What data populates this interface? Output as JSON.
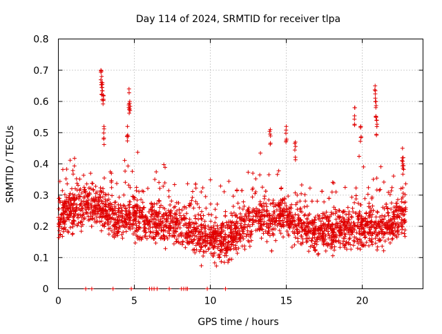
{
  "chart_data": {
    "type": "scatter",
    "title": "Day 114 of 2024, SRMTID for receiver tlpa",
    "xlabel": "GPS time / hours",
    "ylabel": "SRMTID / TECUs",
    "xlim": [
      0,
      24
    ],
    "ylim": [
      0,
      0.8
    ],
    "xticks": [
      0,
      5,
      10,
      15,
      20
    ],
    "xtick_labels": [
      "0",
      "5",
      "10",
      "15",
      "20"
    ],
    "yticks": [
      0,
      0.1,
      0.2,
      0.3,
      0.4,
      0.5,
      0.6,
      0.7,
      0.8
    ],
    "ytick_labels": [
      "0",
      "0.1",
      "0.2",
      "0.3",
      "0.4",
      "0.5",
      "0.6",
      "0.7",
      "0.8"
    ],
    "grid": true,
    "marker": "plus",
    "marker_color": "#e00000",
    "data_extent_hours": [
      0,
      22.9
    ],
    "trend": [
      {
        "x": 0.0,
        "y": 0.23
      },
      {
        "x": 1.0,
        "y": 0.26
      },
      {
        "x": 2.0,
        "y": 0.27
      },
      {
        "x": 3.0,
        "y": 0.25
      },
      {
        "x": 4.0,
        "y": 0.22
      },
      {
        "x": 5.0,
        "y": 0.23
      },
      {
        "x": 6.0,
        "y": 0.22
      },
      {
        "x": 7.0,
        "y": 0.21
      },
      {
        "x": 8.0,
        "y": 0.2
      },
      {
        "x": 9.0,
        "y": 0.19
      },
      {
        "x": 10.0,
        "y": 0.16
      },
      {
        "x": 11.0,
        "y": 0.15
      },
      {
        "x": 12.0,
        "y": 0.2
      },
      {
        "x": 13.0,
        "y": 0.23
      },
      {
        "x": 14.0,
        "y": 0.22
      },
      {
        "x": 15.0,
        "y": 0.24
      },
      {
        "x": 16.0,
        "y": 0.2
      },
      {
        "x": 17.0,
        "y": 0.18
      },
      {
        "x": 18.0,
        "y": 0.19
      },
      {
        "x": 19.0,
        "y": 0.19
      },
      {
        "x": 20.0,
        "y": 0.2
      },
      {
        "x": 21.0,
        "y": 0.19
      },
      {
        "x": 22.0,
        "y": 0.21
      },
      {
        "x": 22.9,
        "y": 0.25
      }
    ],
    "highlights": [
      {
        "x": 2.8,
        "y": 0.7
      },
      {
        "x": 2.85,
        "y": 0.68
      },
      {
        "x": 2.9,
        "y": 0.66
      },
      {
        "x": 2.95,
        "y": 0.62
      },
      {
        "x": 3.0,
        "y": 0.52
      },
      {
        "x": 4.65,
        "y": 0.64
      },
      {
        "x": 4.7,
        "y": 0.6
      },
      {
        "x": 4.55,
        "y": 0.52
      },
      {
        "x": 13.95,
        "y": 0.51
      },
      {
        "x": 15.0,
        "y": 0.52
      },
      {
        "x": 15.6,
        "y": 0.47
      },
      {
        "x": 19.5,
        "y": 0.58
      },
      {
        "x": 19.9,
        "y": 0.52
      },
      {
        "x": 20.85,
        "y": 0.65
      },
      {
        "x": 20.9,
        "y": 0.6
      },
      {
        "x": 20.95,
        "y": 0.54
      },
      {
        "x": 22.65,
        "y": 0.45
      },
      {
        "x": 22.7,
        "y": 0.42
      }
    ],
    "zeros": [
      1.8,
      2.2,
      3.6,
      4.8,
      6.0,
      6.15,
      6.3,
      6.5,
      7.3,
      8.1,
      8.25,
      8.4,
      8.5,
      9.8,
      11.0
    ]
  }
}
